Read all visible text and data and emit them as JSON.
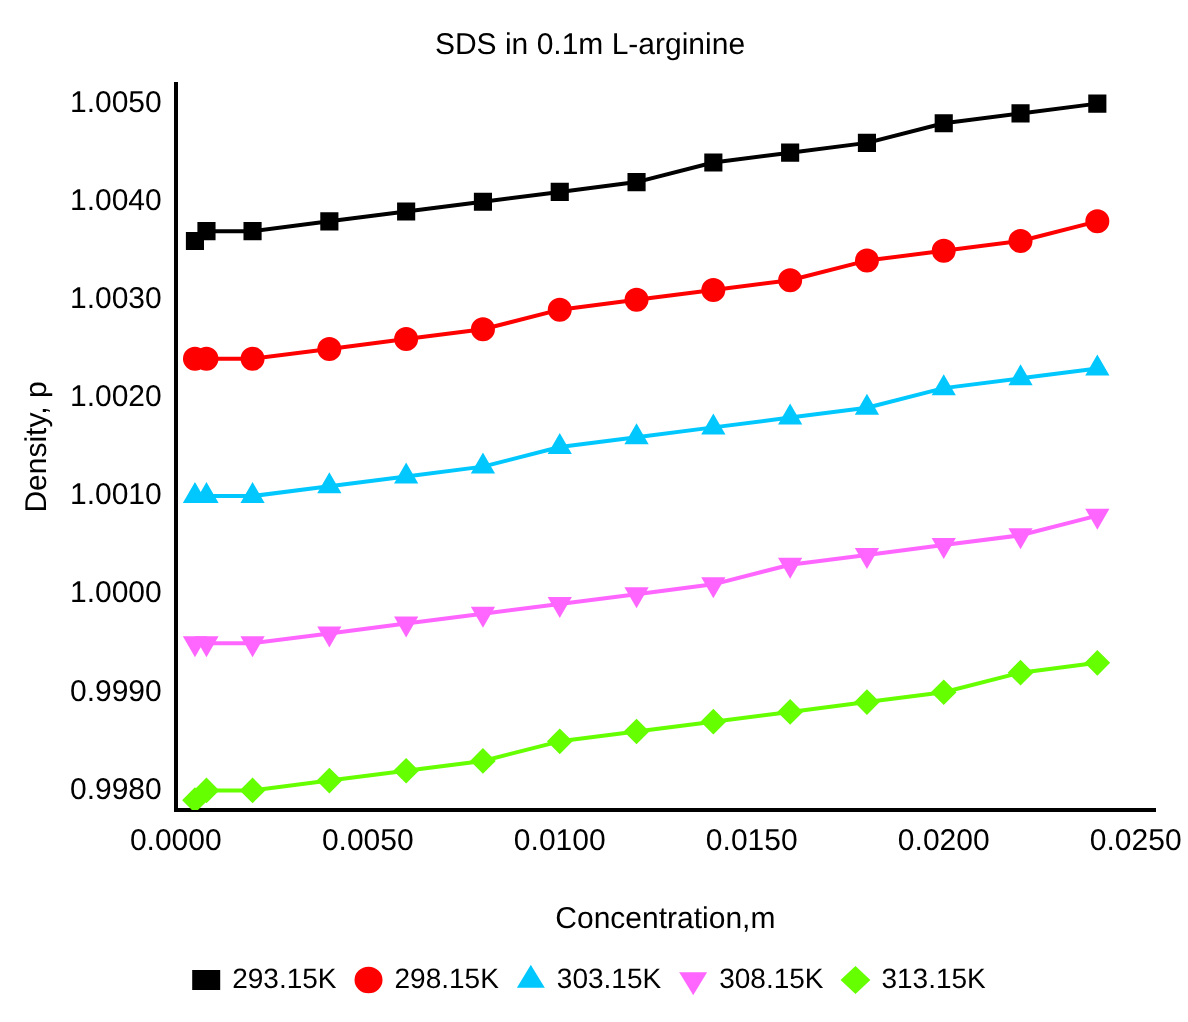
{
  "chart_data": {
    "type": "line",
    "title": "SDS in 0.1m L-arginine",
    "xlabel": "Concentration,m",
    "ylabel": "Density, p",
    "x": [
      0.0005,
      0.0008,
      0.002,
      0.004,
      0.006,
      0.008,
      0.01,
      0.012,
      0.014,
      0.016,
      0.018,
      0.02,
      0.022,
      0.024
    ],
    "series": [
      {
        "name": "293.15K",
        "color": "#000000",
        "marker": "square",
        "values": [
          1.0036,
          1.0037,
          1.0037,
          1.0038,
          1.0039,
          1.004,
          1.0041,
          1.0042,
          1.0044,
          1.0045,
          1.0046,
          1.0048,
          1.0049,
          1.005
        ]
      },
      {
        "name": "298.15K",
        "color": "#ff0000",
        "marker": "circle",
        "values": [
          1.0024,
          1.0024,
          1.0024,
          1.0025,
          1.0026,
          1.0027,
          1.0029,
          1.003,
          1.0031,
          1.0032,
          1.0034,
          1.0035,
          1.0036,
          1.0038
        ]
      },
      {
        "name": "303.15K",
        "color": "#00c8ff",
        "marker": "triangle",
        "values": [
          1.001,
          1.001,
          1.001,
          1.0011,
          1.0012,
          1.0013,
          1.0015,
          1.0016,
          1.0017,
          1.0018,
          1.0019,
          1.0021,
          1.0022,
          1.0023
        ]
      },
      {
        "name": "308.15K",
        "color": "#ff66ff",
        "marker": "triangle-down",
        "values": [
          0.9995,
          0.9995,
          0.9995,
          0.9996,
          0.9997,
          0.9998,
          0.9999,
          1.0,
          1.0001,
          1.0003,
          1.0004,
          1.0005,
          1.0006,
          1.0008
        ]
      },
      {
        "name": "313.15K",
        "color": "#66ff00",
        "marker": "diamond",
        "values": [
          0.9979,
          0.998,
          0.998,
          0.9981,
          0.9982,
          0.9983,
          0.9985,
          0.9986,
          0.9987,
          0.9988,
          0.9989,
          0.999,
          0.9992,
          0.9993
        ]
      }
    ],
    "xlim": [
      0,
      0.0255
    ],
    "xticks": [
      {
        "value": 0,
        "label": "0.0000"
      },
      {
        "value": 0.005,
        "label": "0.0050"
      },
      {
        "value": 0.01,
        "label": "0.0100"
      },
      {
        "value": 0.015,
        "label": "0.0150"
      },
      {
        "value": 0.02,
        "label": "0.0200"
      },
      {
        "value": 0.025,
        "label": "0.0250"
      }
    ],
    "ylim": [
      0.9978,
      1.0052
    ],
    "yticks": [
      {
        "value": 0.998,
        "label": "0.9980"
      },
      {
        "value": 0.999,
        "label": "0.9990"
      },
      {
        "value": 1.0,
        "label": "1.0000"
      },
      {
        "value": 1.001,
        "label": "1.0010"
      },
      {
        "value": 1.002,
        "label": "1.0020"
      },
      {
        "value": 1.003,
        "label": "1.0030"
      },
      {
        "value": 1.004,
        "label": "1.0040"
      },
      {
        "value": 1.005,
        "label": "1.0050"
      }
    ],
    "grid": false,
    "legend": "bottom",
    "line_style": "solid"
  }
}
